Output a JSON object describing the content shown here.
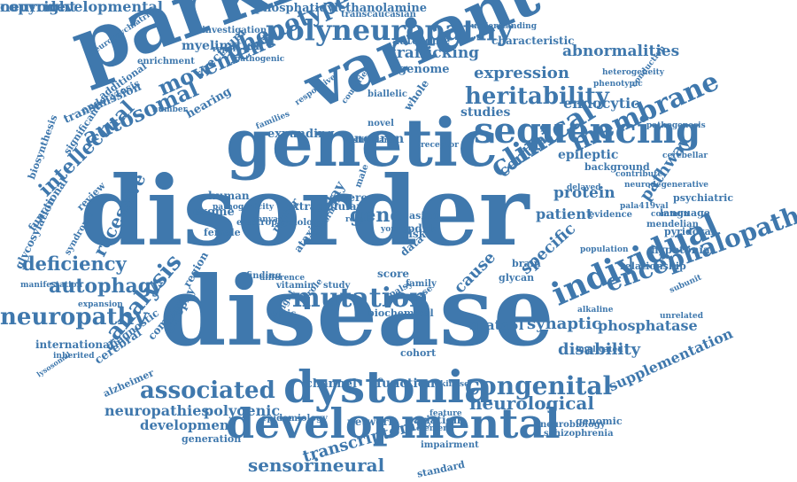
{
  "accent_color": "#3f78ad",
  "words": [
    "disorder",
    "disease",
    "parkinson",
    "genetic",
    "variant",
    "developmental",
    "dystonia",
    "sequencing",
    "individual",
    "polyneuropathy",
    "clinical",
    "membrane",
    "mutation",
    "congenital",
    "associated",
    "neuropathy",
    "autophagy",
    "analysis",
    "encephalopathy",
    "heritability",
    "phenotype",
    "movement",
    "autosomal",
    "intellectual",
    "recessive",
    "deficiency",
    "gene",
    "neurological",
    "expression",
    "trafficking",
    "abnormalities",
    "sensorineural",
    "transcriptomic",
    "neuropathies",
    "polygenic",
    "development",
    "endocytic",
    "spata5l",
    "synaptic",
    "phosphatase",
    "disability",
    "supplementation",
    "protein",
    "patient",
    "specific",
    "pathway",
    "central",
    "epileptic",
    "studies",
    "neuron",
    "cause",
    "function",
    "channel",
    "network",
    "variation",
    "phosphatidylethanolamine",
    "myelination",
    "spectrum",
    "transmission",
    "hearing",
    "genome",
    "characteristic",
    "autosome",
    "exome",
    "human",
    "female",
    "delay",
    "motor",
    "ataxia",
    "risk",
    "pdxk",
    "asian",
    "brain",
    "glycan",
    "cohort",
    "cerebral",
    "atrophy",
    "complex",
    "alzheimer",
    "diagnostic",
    "international",
    "functional",
    "glycosylation",
    "biosynthesis",
    "significant",
    "endocytosis",
    "enrichment",
    "investigation",
    "transcaucasian",
    "neuropsychiatric",
    "pathogenic",
    "additional",
    "understanding",
    "heterogeneity",
    "phenotypic",
    "biallelic",
    "conduction",
    "pathogenesis",
    "cerebellar",
    "psychiatric",
    "language",
    "pyridoxal",
    "hypotonia",
    "mendelian",
    "subunit",
    "relationship",
    "alkaline",
    "unrelated",
    "genomic",
    "neurobiology",
    "schizophrenia",
    "generation",
    "epidemiology",
    "impairment",
    "standard",
    "background",
    "neurodegenerative",
    "evidence",
    "pala419val",
    "delayed",
    "contribute",
    "common",
    "expanding",
    "extracellular",
    "severe",
    "novel",
    "whole",
    "vitamin",
    "finding",
    "study",
    "family",
    "score",
    "palsy",
    "data",
    "case",
    "region",
    "review",
    "manifestation",
    "syndrome",
    "expansion",
    "inherited",
    "lysosomal",
    "pathogenicity",
    "electrophysiology",
    "canvas",
    "result",
    "male",
    "young",
    "kinase",
    "feature",
    "element",
    "implicated",
    "population",
    "biochemical",
    "difference",
    "abnormal",
    "insight",
    "optic",
    "role",
    "countries",
    "number",
    "report",
    "families",
    "responsive",
    "vestibular",
    "receptor",
    "copyright",
    "neurodevelopmental"
  ]
}
